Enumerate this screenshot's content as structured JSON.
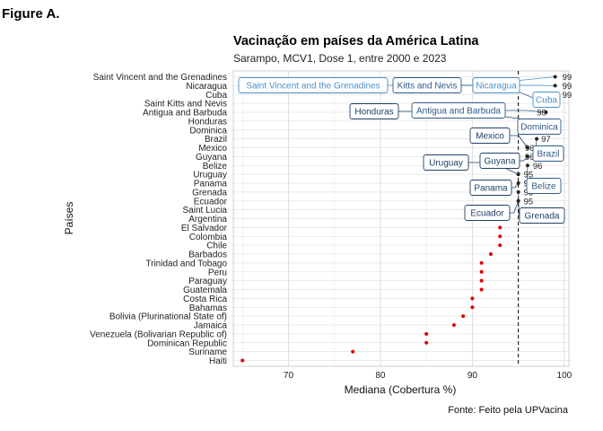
{
  "figure_label": "Figure A.",
  "chart_data": {
    "type": "scatter",
    "title": "Vacinação em países da América Latina",
    "subtitle": "Sarampo, MCV1, Dose 1, entre 2000 e 2023",
    "xlabel": "Mediana (Cobertura %)",
    "ylabel": "Países",
    "caption": "Fonte: Feito pela UPVacina",
    "xlim": [
      64,
      100.5
    ],
    "xticks": [
      70,
      80,
      90,
      100
    ],
    "reference_line_x": 95,
    "grid": true,
    "point_color": "#e00000",
    "categories": [
      "Saint Vincent and the Grenadines",
      "Nicaragua",
      "Cuba",
      "Saint Kitts and Nevis",
      "Antigua and Barbuda",
      "Honduras",
      "Dominica",
      "Brazil",
      "Mexico",
      "Guyana",
      "Belize",
      "Uruguay",
      "Panama",
      "Grenada",
      "Ecuador",
      "Saint Lucia",
      "Argentina",
      "El Salvador",
      "Colombia",
      "Chile",
      "Barbados",
      "Trinidad and Tobago",
      "Peru",
      "Paraguay",
      "Guatemala",
      "Costa Rica",
      "Bahamas",
      "Bolivia (Plurinational State of)",
      "Jamaica",
      "Venezuela (Bolivarian Republic of)",
      "Dominican Republic",
      "Suriname",
      "Haiti"
    ],
    "values": [
      99,
      99,
      99,
      98,
      98,
      97,
      97,
      97,
      96,
      96,
      96,
      95,
      95,
      95,
      95,
      null,
      93,
      93,
      93,
      93,
      92,
      91,
      91,
      91,
      91,
      90,
      90,
      89,
      88,
      85,
      85,
      77,
      65
    ],
    "value_labels": [
      {
        "country": "Saint Vincent and the Grenadines",
        "text": "99"
      },
      {
        "country": "Nicaragua",
        "text": "99"
      },
      {
        "country": "Cuba",
        "text": "99"
      },
      {
        "country": "Saint Kitts and Nevis",
        "text": "98"
      },
      {
        "country": "Antigua and Barbuda",
        "text": "98"
      },
      {
        "country": "Honduras",
        "text": "97"
      },
      {
        "country": "Dominica",
        "text": "97"
      },
      {
        "country": "Brazil",
        "text": "97"
      },
      {
        "country": "Mexico",
        "text": "96"
      },
      {
        "country": "Guyana",
        "text": "96"
      },
      {
        "country": "Belize",
        "text": "96"
      },
      {
        "country": "Uruguay",
        "text": "95"
      },
      {
        "country": "Panama",
        "text": "95"
      },
      {
        "country": "Grenada",
        "text": "95"
      },
      {
        "country": "Ecuador",
        "text": "95"
      }
    ],
    "annotations": [
      {
        "text": "Saint Vincent and the Grenadines",
        "country": "Saint Vincent and the Grenadines",
        "color": "#4a90c8"
      },
      {
        "text": "Kitts and Nevis",
        "country": "Saint Kitts and Nevis",
        "color": "#2e5a88"
      },
      {
        "text": "Nicaragua",
        "country": "Nicaragua",
        "color": "#4a90c8"
      },
      {
        "text": "Cuba",
        "country": "Cuba",
        "color": "#4a90c8"
      },
      {
        "text": "Honduras",
        "country": "Honduras",
        "color": "#1f3f66"
      },
      {
        "text": "Antigua and Barbuda",
        "country": "Antigua and Barbuda",
        "color": "#2e5a88"
      },
      {
        "text": "Dominica",
        "country": "Dominica",
        "color": "#2e5a88"
      },
      {
        "text": "Mexico",
        "country": "Mexico",
        "color": "#1f3f66"
      },
      {
        "text": "Brazil",
        "country": "Brazil",
        "color": "#2e5a88"
      },
      {
        "text": "Guyana",
        "country": "Guyana",
        "color": "#1f3f66"
      },
      {
        "text": "Uruguay",
        "country": "Uruguay",
        "color": "#1f3f66"
      },
      {
        "text": "Belize",
        "country": "Belize",
        "color": "#2e5a88"
      },
      {
        "text": "Panama",
        "country": "Panama",
        "color": "#1f3f66"
      },
      {
        "text": "Ecuador",
        "country": "Ecuador",
        "color": "#1f3f66"
      },
      {
        "text": "Grenada",
        "country": "Grenada",
        "color": "#1f3f66"
      }
    ]
  }
}
